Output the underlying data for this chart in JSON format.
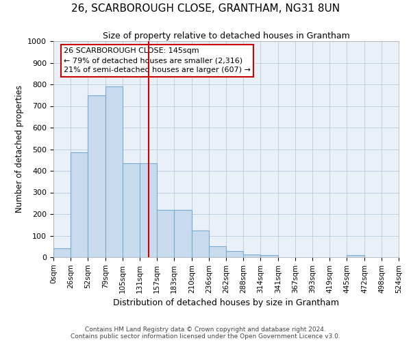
{
  "title": "26, SCARBOROUGH CLOSE, GRANTHAM, NG31 8UN",
  "subtitle": "Size of property relative to detached houses in Grantham",
  "xlabel": "Distribution of detached houses by size in Grantham",
  "ylabel": "Number of detached properties",
  "bar_color": "#c8daed",
  "bar_edge_color": "#7aaad0",
  "background_color": "#ffffff",
  "plot_bg_color": "#eaf0f8",
  "grid_color": "#b0c4de",
  "annotation_box_color": "#cc0000",
  "vline_color": "#cc0000",
  "property_size": 145,
  "annotation_line1": "26 SCARBOROUGH CLOSE: 145sqm",
  "annotation_line2": "← 79% of detached houses are smaller (2,316)",
  "annotation_line3": "21% of semi-detached houses are larger (607) →",
  "bin_edges": [
    0,
    26,
    52,
    79,
    105,
    131,
    157,
    183,
    210,
    236,
    262,
    288,
    314,
    341,
    367,
    393,
    419,
    445,
    472,
    498,
    524
  ],
  "bin_counts": [
    40,
    485,
    750,
    790,
    435,
    435,
    220,
    220,
    125,
    50,
    30,
    13,
    10,
    0,
    0,
    0,
    0,
    8,
    0,
    0
  ],
  "ylim": [
    0,
    1000
  ],
  "yticks": [
    0,
    100,
    200,
    300,
    400,
    500,
    600,
    700,
    800,
    900,
    1000
  ],
  "footer_line1": "Contains HM Land Registry data © Crown copyright and database right 2024.",
  "footer_line2": "Contains public sector information licensed under the Open Government Licence v3.0."
}
